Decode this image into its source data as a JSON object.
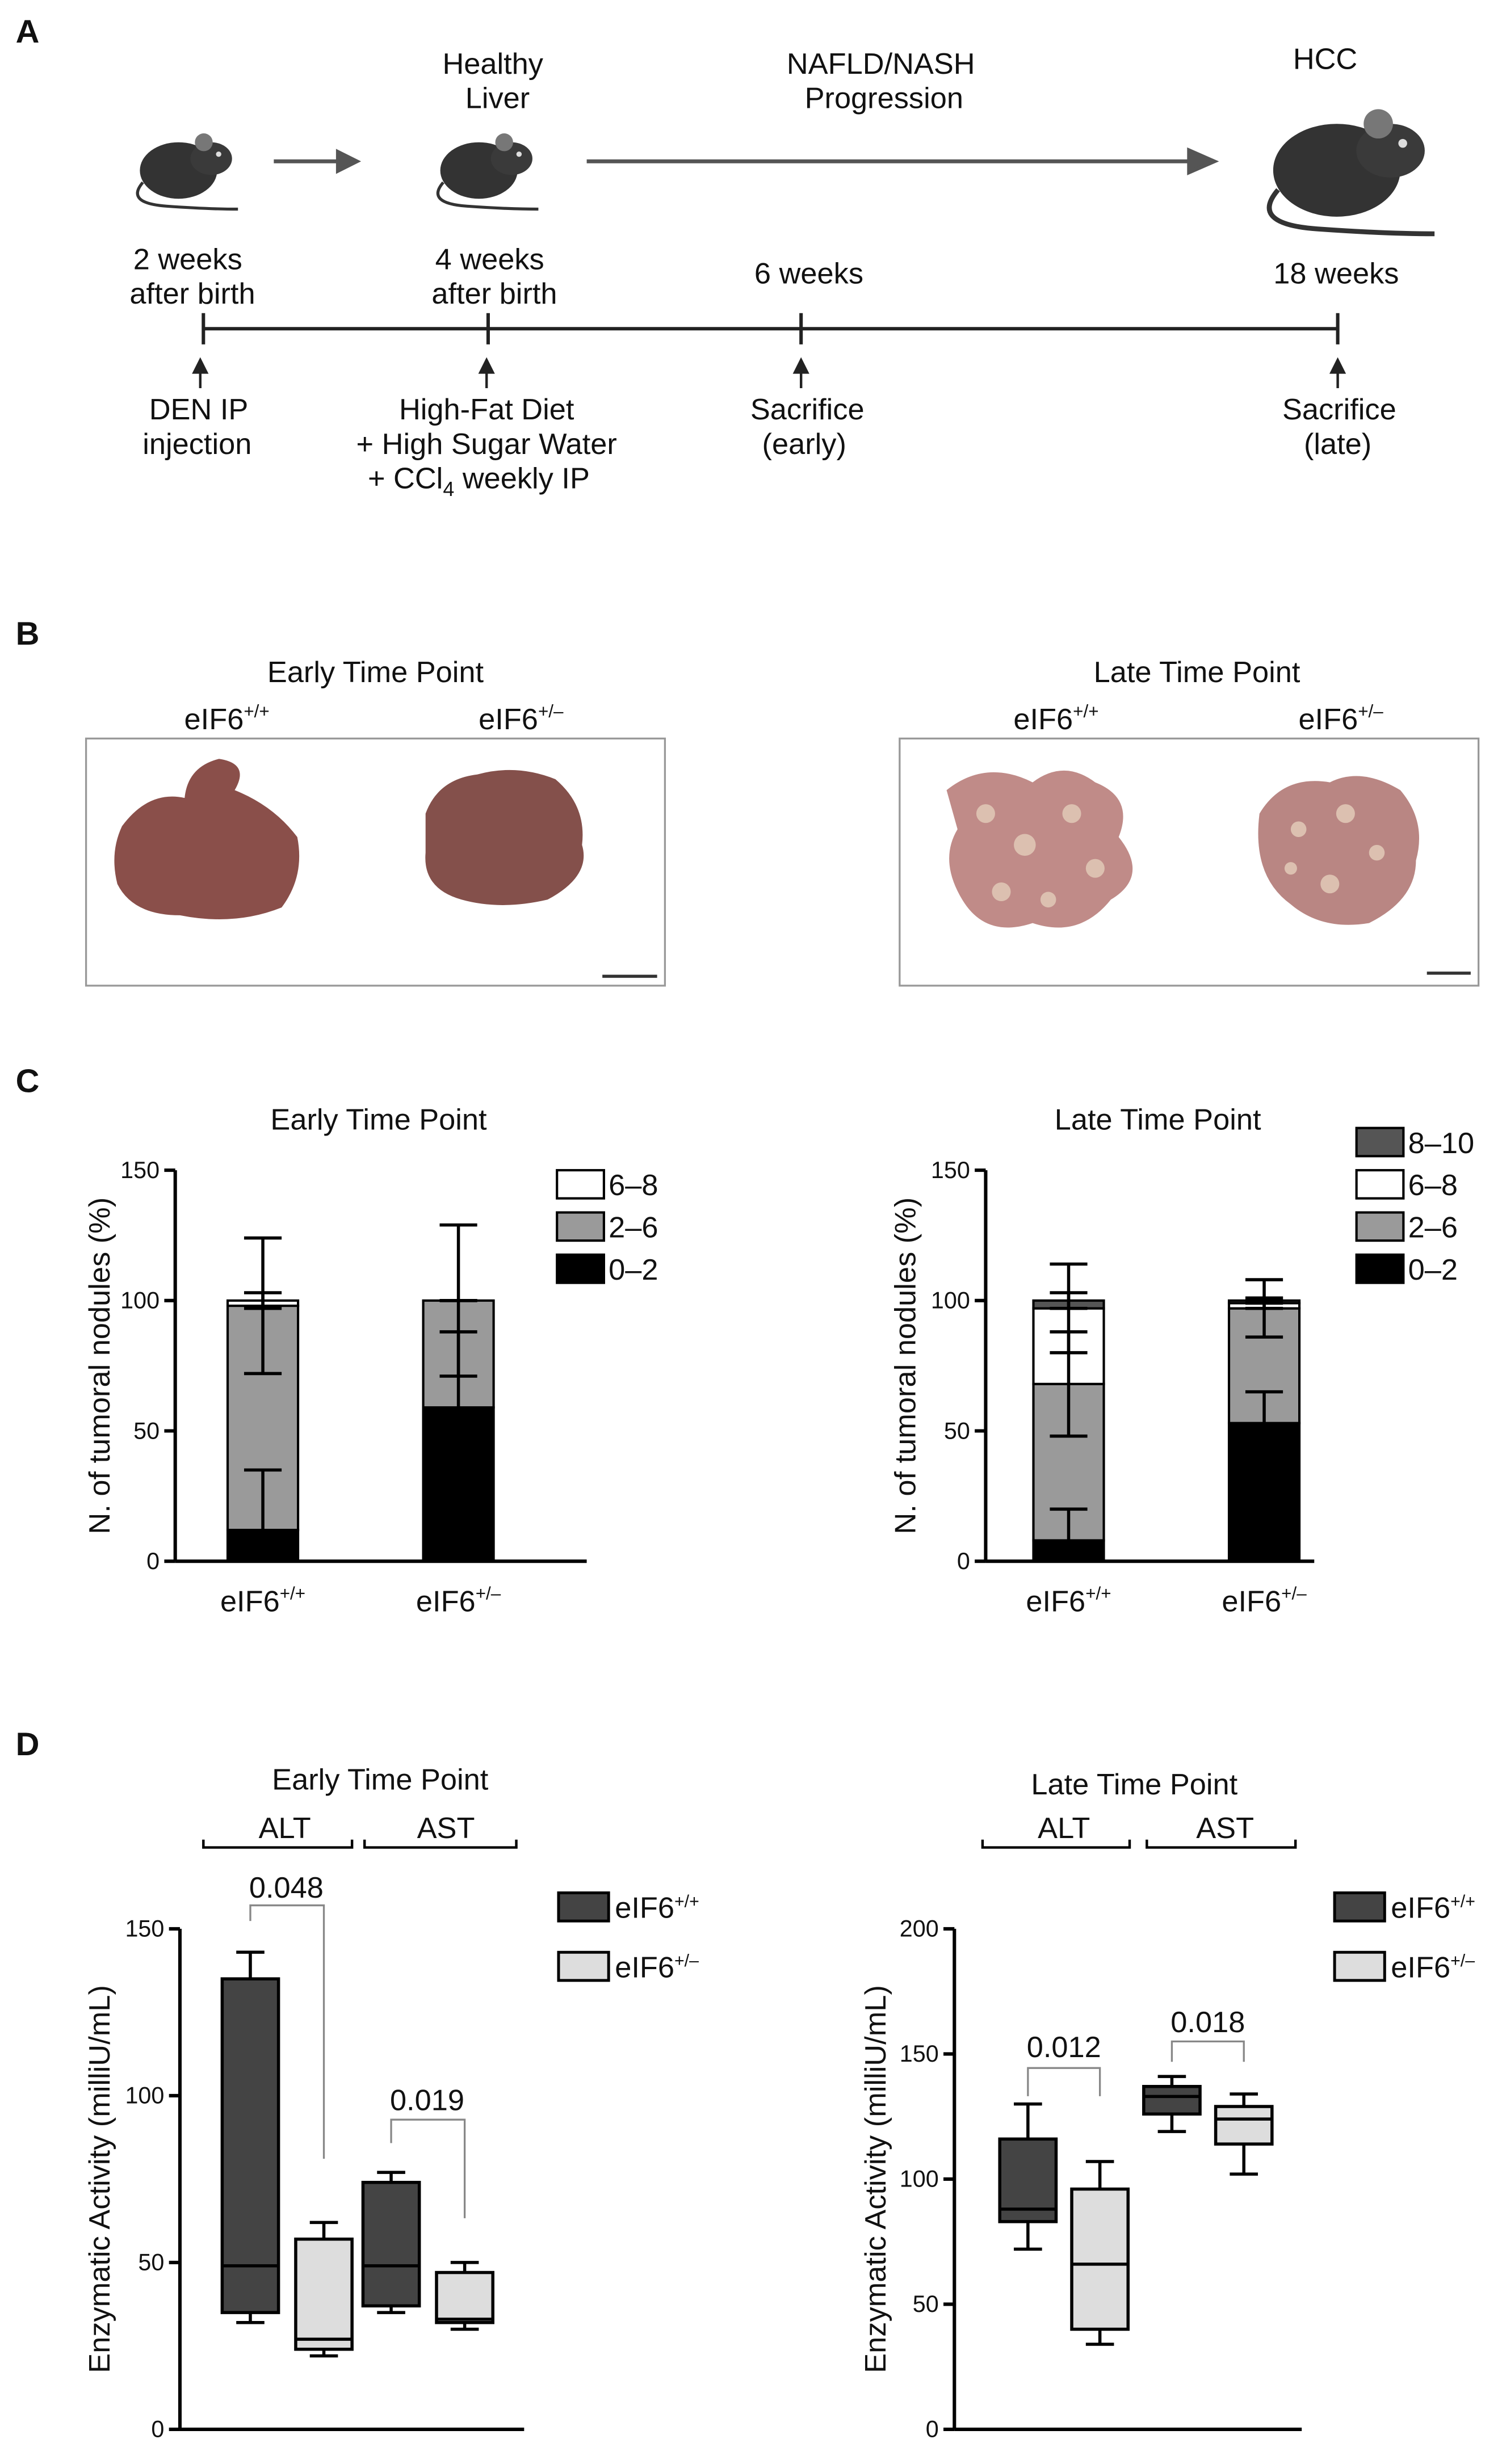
{
  "panel_a": {
    "label": "A",
    "top_labels": [
      [
        "Healthy",
        "Liver"
      ],
      [
        "NAFLD/NASH",
        "Progression"
      ],
      [
        "HCC"
      ]
    ],
    "time_labels": [
      [
        "2 weeks",
        "after birth"
      ],
      [
        "4 weeks",
        "after birth"
      ],
      [
        "6 weeks"
      ],
      [
        "18 weeks"
      ]
    ],
    "events": [
      [
        "DEN IP",
        "injection"
      ],
      [
        "High-Fat Diet",
        "+ High Sugar Water",
        {
          "before": "+ CCl",
          "sub": "4",
          "after": " weekly IP"
        }
      ],
      [
        "Sacrifice",
        "(early)"
      ],
      [
        "Sacrifice",
        "(late)"
      ]
    ]
  },
  "panel_b": {
    "label": "B",
    "groups": [
      {
        "title": "Early Time Point",
        "genotypes": [
          {
            "base": "eIF6",
            "sup": "+/+"
          },
          {
            "base": "eIF6",
            "sup": "+/–"
          }
        ]
      },
      {
        "title": "Late Time Point",
        "genotypes": [
          {
            "base": "eIF6",
            "sup": "+/+"
          },
          {
            "base": "eIF6",
            "sup": "+/–"
          }
        ]
      }
    ]
  },
  "panel_c": {
    "label": "C"
  },
  "panel_d": {
    "label": "D"
  },
  "chart_data": [
    {
      "type": "stacked_bar",
      "title": "Early Time Point",
      "ylabel": "N. of tumoral nodules (%)",
      "categories": [
        {
          "base": "eIF6",
          "sup": "+/+"
        },
        {
          "base": "eIF6",
          "sup": "+/–"
        }
      ],
      "ylim": [
        0,
        150
      ],
      "yticks": [
        0,
        50,
        100,
        150
      ],
      "series": [
        {
          "name": "0–2",
          "color": "#000000",
          "values": [
            12,
            59
          ],
          "errors": [
            23,
            29
          ]
        },
        {
          "name": "2–6",
          "color": "#9a9a9a",
          "values": [
            86,
            41
          ],
          "errors": [
            26,
            29
          ]
        },
        {
          "name": "6–8",
          "color": "#ffffff",
          "values": [
            2,
            0
          ],
          "errors": [
            3,
            0
          ]
        }
      ]
    },
    {
      "type": "stacked_bar",
      "title": "Late Time Point",
      "ylabel": "N. of tumoral nodules (%)",
      "categories": [
        {
          "base": "eIF6",
          "sup": "+/+"
        },
        {
          "base": "eIF6",
          "sup": "+/–"
        }
      ],
      "ylim": [
        0,
        150
      ],
      "yticks": [
        0,
        50,
        100,
        150
      ],
      "series": [
        {
          "name": "0–2",
          "color": "#000000",
          "values": [
            8,
            53
          ],
          "errors": [
            12,
            12
          ]
        },
        {
          "name": "2–6",
          "color": "#9a9a9a",
          "values": [
            60,
            44
          ],
          "errors": [
            20,
            11
          ]
        },
        {
          "name": "6–8",
          "color": "#ffffff",
          "values": [
            29,
            2
          ],
          "errors": [
            17,
            2
          ]
        },
        {
          "name": "8–10",
          "color": "#555555",
          "values": [
            3,
            1
          ],
          "errors": [
            3,
            1
          ]
        }
      ]
    },
    {
      "type": "box",
      "title": "Early Time Point",
      "ylabel": "Enzymatic Activity (milliU/mL)",
      "categories": [
        "ALT",
        "AST"
      ],
      "ylim": [
        0,
        150
      ],
      "yticks": [
        0,
        50,
        100,
        150
      ],
      "series": [
        {
          "name": {
            "base": "eIF6",
            "sup": "+/+"
          },
          "color": "#444444",
          "values": [
            {
              "min": 32,
              "q1": 35,
              "median": 49,
              "q3": 135,
              "max": 143
            },
            {
              "min": 35,
              "q1": 37,
              "median": 49,
              "q3": 74,
              "max": 77
            }
          ]
        },
        {
          "name": {
            "base": "eIF6",
            "sup": "+/–"
          },
          "color": "#dddddd",
          "values": [
            {
              "min": 22,
              "q1": 24,
              "median": 27,
              "q3": 57,
              "max": 62
            },
            {
              "min": 30,
              "q1": 32,
              "median": 33,
              "q3": 47,
              "max": 50
            }
          ]
        }
      ],
      "annotations": [
        "0.048",
        "0.019"
      ]
    },
    {
      "type": "box",
      "title": "Late Time Point",
      "ylabel": "Enzymatic Activity (milliU/mL)",
      "categories": [
        "ALT",
        "AST"
      ],
      "ylim": [
        0,
        200
      ],
      "yticks": [
        0,
        50,
        100,
        150,
        200
      ],
      "series": [
        {
          "name": {
            "base": "eIF6",
            "sup": "+/+"
          },
          "color": "#444444",
          "values": [
            {
              "min": 72,
              "q1": 83,
              "median": 88,
              "q3": 116,
              "max": 130
            },
            {
              "min": 119,
              "q1": 126,
              "median": 133,
              "q3": 137,
              "max": 141
            }
          ]
        },
        {
          "name": {
            "base": "eIF6",
            "sup": "+/–"
          },
          "color": "#dddddd",
          "values": [
            {
              "min": 34,
              "q1": 40,
              "median": 66,
              "q3": 96,
              "max": 107
            },
            {
              "min": 102,
              "q1": 114,
              "median": 124,
              "q3": 129,
              "max": 134
            }
          ]
        }
      ],
      "annotations": [
        "0.012",
        "0.018"
      ]
    }
  ]
}
